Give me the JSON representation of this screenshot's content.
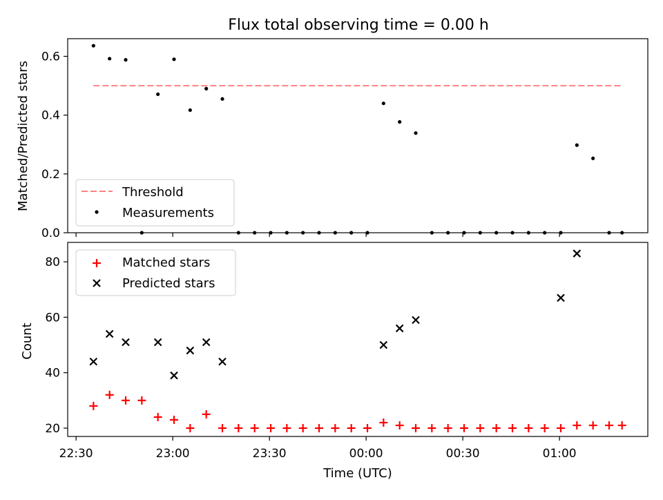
{
  "title": "Flux total observing time = 0.00 h",
  "chart_data": [
    {
      "type": "scatter",
      "ylabel": "Matched/Predicted stars",
      "ylim": [
        0,
        0.66
      ],
      "xlim": [
        -8,
        172
      ],
      "yticks": [
        {
          "value": 0.0,
          "label": "0.0"
        },
        {
          "value": 0.2,
          "label": "0.2"
        },
        {
          "value": 0.4,
          "label": "0.4"
        },
        {
          "value": 0.6,
          "label": "0.6"
        }
      ],
      "legend_position": "lower-left",
      "threshold": {
        "name": "Threshold",
        "value": 0.5,
        "x_range": [
          0,
          164
        ],
        "color": "#ff8080"
      },
      "series": [
        {
          "name": "Measurements",
          "color": "#000000",
          "x": [
            0,
            5,
            10,
            15,
            20,
            25,
            30,
            35,
            40,
            45,
            50,
            55,
            60,
            65,
            70,
            75,
            80,
            85,
            90,
            95,
            100,
            105,
            110,
            115,
            120,
            125,
            130,
            135,
            140,
            145,
            150,
            155,
            160,
            164
          ],
          "y": [
            0.636,
            0.592,
            0.588,
            0.0,
            0.471,
            0.59,
            0.417,
            0.49,
            0.455,
            0.0,
            0.0,
            0.0,
            0.0,
            0.0,
            0.0,
            0.0,
            0.0,
            0.0,
            0.44,
            0.377,
            0.339,
            0.0,
            0.0,
            0.0,
            0.0,
            0.0,
            0.0,
            0.0,
            0.0,
            0.0,
            0.298,
            0.253,
            0.0,
            0.0
          ]
        }
      ]
    },
    {
      "type": "scatter",
      "xlabel": "Time (UTC)",
      "ylabel": "Count",
      "ylim": [
        17,
        87
      ],
      "xlim": [
        -8,
        172
      ],
      "yticks": [
        {
          "value": 20,
          "label": "20"
        },
        {
          "value": 40,
          "label": "40"
        },
        {
          "value": 60,
          "label": "60"
        },
        {
          "value": 80,
          "label": "80"
        }
      ],
      "xticks": [
        {
          "value": -5.4,
          "label": "22:30"
        },
        {
          "value": 24.6,
          "label": "23:00"
        },
        {
          "value": 54.6,
          "label": "23:30"
        },
        {
          "value": 84.6,
          "label": "00:00"
        },
        {
          "value": 114.6,
          "label": "00:30"
        },
        {
          "value": 144.6,
          "label": "01:00"
        }
      ],
      "legend_position": "top-left",
      "series": [
        {
          "name": "Matched stars",
          "marker": "plus",
          "color": "#ff0000",
          "x": [
            0,
            5,
            10,
            15,
            20,
            25,
            30,
            35,
            40,
            45,
            50,
            55,
            60,
            65,
            70,
            75,
            80,
            85,
            90,
            95,
            100,
            105,
            110,
            115,
            120,
            125,
            130,
            135,
            140,
            145,
            150,
            155,
            160,
            164
          ],
          "y": [
            28,
            32,
            30,
            30,
            24,
            23,
            20,
            25,
            20,
            20,
            20,
            20,
            20,
            20,
            20,
            20,
            20,
            20,
            22,
            21,
            20,
            20,
            20,
            20,
            20,
            20,
            20,
            20,
            20,
            20,
            21,
            21,
            21,
            21
          ]
        },
        {
          "name": "Predicted stars",
          "marker": "x",
          "color": "#000000",
          "x": [
            0,
            5,
            10,
            20,
            25,
            30,
            35,
            40,
            90,
            95,
            100,
            145,
            150
          ],
          "y": [
            44,
            54,
            51,
            51,
            39,
            48,
            51,
            44,
            50,
            56,
            59,
            67,
            83
          ]
        }
      ]
    }
  ]
}
